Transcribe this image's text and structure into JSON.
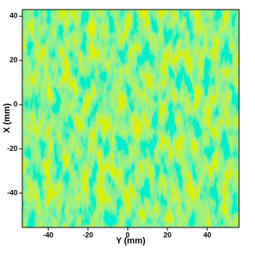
{
  "chart_data": {
    "type": "heatmap",
    "xlabel": "Y (mm)",
    "ylabel": "X (mm)",
    "xlim": [
      -53,
      56
    ],
    "ylim": [
      -55.5,
      43
    ],
    "xticks": [
      -40,
      -20,
      0,
      20,
      40
    ],
    "yticks": [
      -40,
      -20,
      0,
      20,
      40
    ]
  }
}
